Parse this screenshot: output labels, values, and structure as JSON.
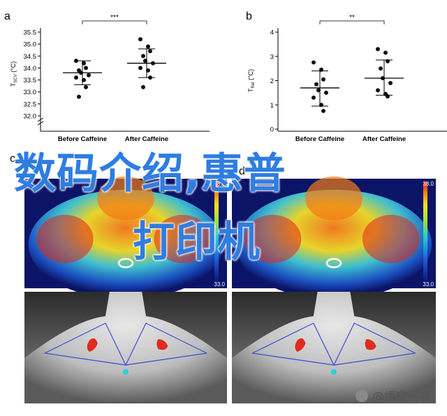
{
  "chart_data": [
    {
      "type": "scatter",
      "panel_letter": "a",
      "ylabel_main": "T",
      "ylabel_sub": "SCV",
      "ylabel_unit": "(°C)",
      "categories": [
        "Before Caffeine",
        "After Caffeine"
      ],
      "yticks": [
        "32.0",
        "32.5",
        "33.0",
        "33.5",
        "34.0",
        "34.5",
        "35.0",
        "35.5"
      ],
      "ylim": [
        32.0,
        35.5
      ],
      "significance": "***",
      "groups": [
        {
          "name": "Before Caffeine",
          "mean": 33.8,
          "err_low": 33.3,
          "err_high": 34.3,
          "values": [
            34.3,
            34.2,
            34.0,
            33.9,
            33.8,
            33.7,
            33.6,
            33.5,
            33.2,
            32.8
          ]
        },
        {
          "name": "After Caffeine",
          "mean": 34.2,
          "err_low": 33.6,
          "err_high": 34.8,
          "values": [
            35.2,
            34.9,
            34.7,
            34.5,
            34.3,
            34.2,
            34.0,
            33.9,
            33.6,
            33.2
          ]
        }
      ]
    },
    {
      "type": "scatter",
      "panel_letter": "b",
      "ylabel_main": "T",
      "ylabel_sub": "Rel",
      "ylabel_unit": "(°C)",
      "categories": [
        "Before Caffeine",
        "After Caffeine"
      ],
      "yticks": [
        "0",
        "1",
        "2",
        "3",
        "4"
      ],
      "ylim": [
        0,
        4
      ],
      "significance": "**",
      "groups": [
        {
          "name": "Before Caffeine",
          "mean": 1.7,
          "err_low": 0.95,
          "err_high": 2.4,
          "values": [
            2.75,
            2.45,
            2.05,
            1.85,
            1.6,
            1.5,
            1.3,
            1.0,
            0.75
          ]
        },
        {
          "name": "After Caffeine",
          "mean": 2.1,
          "err_low": 1.4,
          "err_high": 2.85,
          "values": [
            3.3,
            3.15,
            2.8,
            2.5,
            2.1,
            1.9,
            1.6,
            1.45,
            1.35
          ]
        }
      ]
    }
  ],
  "thermal": {
    "panel_letters": [
      "c",
      "d"
    ],
    "scale_max": "38.0",
    "scale_min": "33.0"
  },
  "overlay": {
    "line1": "数码介绍,惠普",
    "line2": "打印机"
  },
  "watermark": {
    "text": "@悟空问答"
  }
}
